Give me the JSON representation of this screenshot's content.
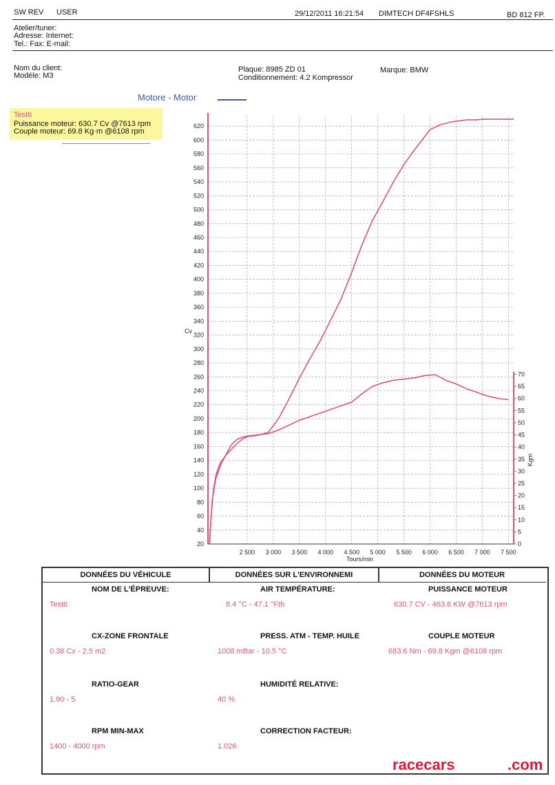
{
  "header": {
    "left1": "SW REV",
    "left2": "USER",
    "datetime": "29/12/2011 16:21:54",
    "device": "DIMTECH DF4FSHLS",
    "ref": "BD 812 FP.",
    "atelier": "Atelier/tuner:",
    "adresse": "Adresse:  Internet:",
    "tel": "Tel.:  Fax:  E-mail:"
  },
  "client": {
    "nom": "Nom du client:",
    "modele": "Modèle: M3",
    "plaque": "Plaque: 8985 ZD 01",
    "conditionnement": "Conditionnement: 4.2 Kompressor",
    "marque": "Marque: BMW"
  },
  "legend": {
    "title": "Motore - Motor",
    "test": "Test6",
    "puissance": "Puissance moteur: 630.7 Cv @7613 rpm",
    "couple": "Couple moteur: 69.8 Kg·m @6108 rpm"
  },
  "chart_data": {
    "type": "line",
    "xlabel": "Tours/min",
    "ylabel": "Cv",
    "y2label": "Kgm",
    "xlim": [
      1750,
      7600
    ],
    "ylim": [
      20,
      635
    ],
    "y2lim": [
      0,
      71
    ],
    "x_ticks": [
      2500,
      3000,
      3500,
      4000,
      4500,
      5000,
      5500,
      6000,
      6500,
      7000,
      7500
    ],
    "x_tick_labels": [
      "2 500",
      "3 000",
      "3 500",
      "4 000",
      "4 500",
      "5 000",
      "5 500",
      "6 000",
      "6 500",
      "7 000",
      "7 500"
    ],
    "y_ticks": [
      20,
      40,
      60,
      80,
      100,
      120,
      140,
      160,
      180,
      200,
      220,
      240,
      260,
      280,
      300,
      320,
      340,
      360,
      380,
      400,
      420,
      440,
      460,
      480,
      500,
      520,
      540,
      560,
      580,
      600,
      620
    ],
    "y2_ticks": [
      0,
      5,
      10,
      15,
      20,
      25,
      30,
      35,
      40,
      45,
      50,
      55,
      60,
      65,
      70
    ],
    "series": [
      {
        "name": "Puissance",
        "color": "#d8537f",
        "points": [
          [
            1780,
            20
          ],
          [
            1810,
            60
          ],
          [
            1850,
            95
          ],
          [
            1900,
            118
          ],
          [
            1950,
            130
          ],
          [
            2000,
            138
          ],
          [
            2100,
            148
          ],
          [
            2200,
            156
          ],
          [
            2300,
            164
          ],
          [
            2400,
            170
          ],
          [
            2500,
            174
          ],
          [
            2700,
            176
          ],
          [
            2900,
            180
          ],
          [
            3100,
            200
          ],
          [
            3300,
            228
          ],
          [
            3500,
            258
          ],
          [
            3700,
            286
          ],
          [
            3900,
            312
          ],
          [
            4100,
            342
          ],
          [
            4300,
            372
          ],
          [
            4500,
            410
          ],
          [
            4700,
            450
          ],
          [
            4900,
            485
          ],
          [
            5100,
            512
          ],
          [
            5300,
            540
          ],
          [
            5500,
            565
          ],
          [
            5700,
            586
          ],
          [
            5900,
            605
          ],
          [
            6000,
            615
          ],
          [
            6200,
            622
          ],
          [
            6400,
            626
          ],
          [
            6500,
            627
          ],
          [
            6600,
            628
          ],
          [
            6700,
            629
          ],
          [
            6800,
            629
          ],
          [
            6900,
            629
          ],
          [
            7000,
            630
          ],
          [
            7200,
            630
          ],
          [
            7400,
            630
          ],
          [
            7600,
            630
          ]
        ]
      },
      {
        "name": "Couple",
        "color": "#d8537f",
        "axis": "y2",
        "points": [
          [
            1780,
            0
          ],
          [
            1830,
            18
          ],
          [
            1900,
            27
          ],
          [
            2000,
            33
          ],
          [
            2100,
            37
          ],
          [
            2200,
            41
          ],
          [
            2300,
            43
          ],
          [
            2400,
            44
          ],
          [
            2500,
            44.5
          ],
          [
            2700,
            45
          ],
          [
            2900,
            45.5
          ],
          [
            3100,
            47
          ],
          [
            3300,
            49
          ],
          [
            3500,
            51
          ],
          [
            3700,
            52.5
          ],
          [
            3900,
            54
          ],
          [
            4100,
            55.5
          ],
          [
            4300,
            57
          ],
          [
            4500,
            58.5
          ],
          [
            4700,
            62
          ],
          [
            4900,
            65
          ],
          [
            5100,
            66.5
          ],
          [
            5300,
            67.5
          ],
          [
            5500,
            68
          ],
          [
            5700,
            68.5
          ],
          [
            5900,
            69.5
          ],
          [
            6100,
            69.8
          ],
          [
            6300,
            67.5
          ],
          [
            6500,
            66
          ],
          [
            6700,
            64
          ],
          [
            6900,
            62.5
          ],
          [
            7100,
            61
          ],
          [
            7300,
            60
          ],
          [
            7500,
            59.5
          ]
        ]
      }
    ]
  },
  "table": {
    "h1": "DONNÉES DU VÉHICULE",
    "h2": "DONNÉES SUR L'ENVIRONNEMI",
    "h3": "DONNÉES DU MOTEUR",
    "r1l1": "NOM DE L'ÉPREUVE:",
    "r1v1": "Test6",
    "r1l2": "AIR TEMPÉRATURE:",
    "r1v2": "8.4 °C - 47.1 °Fth",
    "r1l3": "PUISSANCE MOTEUR",
    "r1v3": "630.7 CV - 463.6 KW  @7613 rpm",
    "r2l1": "CX-ZONE FRONTALE",
    "r2v1": "0.38 Cx - 2.5 m2",
    "r2l2": "PRESS. ATM - TEMP. HUILE",
    "r2v2": "1008 mBar - 10.5 °C",
    "r2l3": "COUPLE MOTEUR",
    "r2v3": "683.6 Nm - 69.8 Kgm  @6108 rpm",
    "r3l1": "RATIO-GEAR",
    "r3v1": "1.90 - 5",
    "r3l2": "HUMIDITÉ RELATIVE:",
    "r3v2": "40 %",
    "r4l1": "RPM MIN-MAX",
    "r4v1": "1400 - 4000 rpm",
    "r4l2": "CORRECTION FACTEUR:",
    "r4v2": "1.026"
  },
  "watermark": {
    "left": "racecars",
    "right": ".com"
  }
}
